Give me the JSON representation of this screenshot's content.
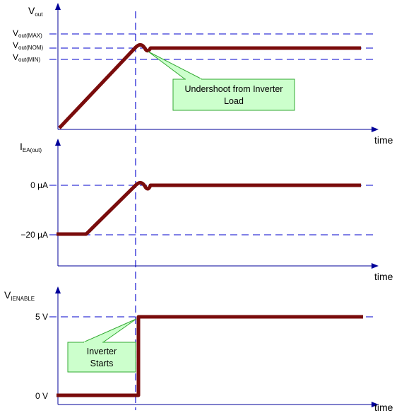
{
  "colors": {
    "trace": "#7a0c0c",
    "axis": "#000099",
    "guide": "#0000cc",
    "callout_fill": "#ccffcc",
    "callout_stroke": "#33aa33"
  },
  "panels": {
    "vout": {
      "title_main": "V",
      "title_sub": "out",
      "levels": [
        {
          "main": "V",
          "sub": "out(MAX)"
        },
        {
          "main": "V",
          "sub": "out(NOM)"
        },
        {
          "main": "V",
          "sub": "out(MIN)"
        }
      ],
      "x_label": "time"
    },
    "iea": {
      "title_main": "I",
      "title_sub": "EA(out)",
      "levels": [
        "0 µA",
        "−20 µA"
      ],
      "x_label": "time"
    },
    "venable": {
      "title_main": "V",
      "title_sub": "IENABLE",
      "levels": [
        "5 V",
        "0 V"
      ],
      "x_label": "time"
    }
  },
  "callouts": {
    "undershoot": [
      "Undershoot from Inverter",
      "Load"
    ],
    "inverter_starts": [
      "Inverter",
      "Starts"
    ]
  }
}
